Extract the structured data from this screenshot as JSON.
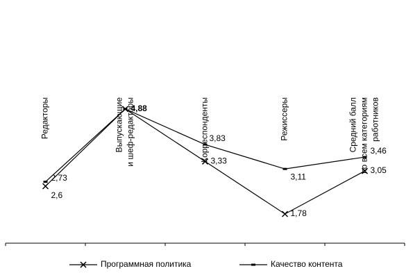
{
  "chart_data": {
    "type": "line",
    "categories": [
      "Редакторы",
      "Выпускающие\nи шеф-редакторы",
      "Корреспонденты",
      "Режиссеры",
      "Средний балл\nпо всем категориям\nработников"
    ],
    "series": [
      {
        "name": "Программная политика",
        "color": "#000000",
        "marker": "x",
        "values": [
          2.6,
          4.88,
          3.33,
          1.78,
          3.05
        ],
        "value_labels": [
          "2,6",
          null,
          "3,33",
          "1,78",
          "3,05"
        ]
      },
      {
        "name": "Качество контента",
        "color": "#000000",
        "marker": "dash",
        "values": [
          2.73,
          4.88,
          3.83,
          3.11,
          3.46
        ],
        "value_labels": [
          "2,73",
          "4,88",
          "3,83",
          "3,11",
          "3,46"
        ]
      }
    ],
    "ylim": [
      1,
      5
    ],
    "legend": "bottom"
  }
}
